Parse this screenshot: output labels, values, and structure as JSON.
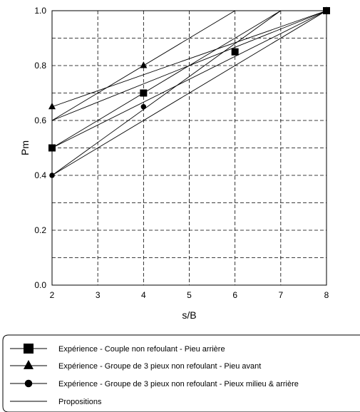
{
  "chart_data": {
    "type": "line",
    "title": "",
    "xlabel": "s/B",
    "ylabel": "Pm",
    "xlim": [
      2,
      8
    ],
    "ylim": [
      0.0,
      1.0
    ],
    "x_tick_labels": [
      "2",
      "3",
      "4",
      "5",
      "6",
      "7",
      "8"
    ],
    "y_tick_labels": [
      "0.0",
      "0.2",
      "0.4",
      "0.6",
      "0.8",
      "1.0"
    ],
    "x_minor_step": 1,
    "y_minor_step": 0.1,
    "grid": "dashed",
    "legend_position": "bottom",
    "series": [
      {
        "name": "Expérience - Couple non refoulant - Pieu arrière",
        "marker": "square",
        "points": [
          [
            2,
            0.5
          ],
          [
            4,
            0.7
          ],
          [
            6,
            0.85
          ],
          [
            8,
            1.0
          ]
        ]
      },
      {
        "name": "Expérience - Groupe de 3 pieux non refoulant - Pieu avant",
        "marker": "triangle",
        "points": [
          [
            2,
            0.65
          ],
          [
            4,
            0.8
          ],
          [
            8,
            1.0
          ]
        ]
      },
      {
        "name": "Expérience - Groupe de 3 pieux non refoulant - Pieux milieu & arrière",
        "marker": "circle",
        "points": [
          [
            2,
            0.4
          ],
          [
            4,
            0.65
          ],
          [
            8,
            1.0
          ]
        ]
      },
      {
        "name": "Propositions",
        "marker": "none",
        "lines": [
          [
            [
              2,
              0.5
            ],
            [
              8,
              1.0
            ]
          ],
          [
            [
              2,
              0.5
            ],
            [
              7,
              1.0
            ]
          ],
          [
            [
              2,
              0.4
            ],
            [
              8,
              1.0
            ]
          ],
          [
            [
              2,
              0.4
            ],
            [
              7,
              1.0
            ]
          ],
          [
            [
              2,
              0.6
            ],
            [
              8,
              1.0
            ]
          ],
          [
            [
              2,
              0.6
            ],
            [
              6,
              1.0
            ]
          ],
          [
            [
              2,
              0.65
            ],
            [
              8,
              1.0
            ]
          ]
        ]
      }
    ]
  }
}
